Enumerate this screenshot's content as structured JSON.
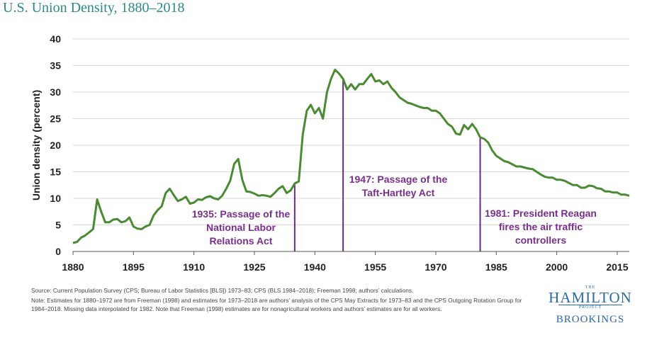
{
  "title": "U.S. Union Density, 1880–2018",
  "source_note": "Source: Current Population Survey (CPS; Bureau of Labor Statistics [BLS]) 1973–83; CPS (BLS 1984–2018); Freeman 1998; authors’ calculations.",
  "method_note": "Note: Estimates for 1880–1972 are from Freeman (1998) and estimates for 1973–2018 are authors’ analysis of the CPS May Extracts for 1973–83 and the CPS Outgoing Rotation Group for 1984–2018. Missing data interpolated for 1982. Note that Freeman (1998) estimates are for nonagricultural workers and authors’ estimates are for all workers.",
  "logo": {
    "the": "THE",
    "hamilton": "HAMILTON",
    "project": "PROJECT",
    "brookings": "BROOKINGS"
  },
  "colors": {
    "line": "#4a8a32",
    "marker": "#6b2a8a",
    "annotation": "#7a2e8e",
    "title": "#2a8a8a",
    "grid": "#d9d9d9"
  },
  "chart_data": {
    "type": "line",
    "title": "U.S. Union Density, 1880–2018",
    "xlabel": "",
    "ylabel": "Union density (percent)",
    "xlim": [
      1880,
      2018
    ],
    "ylim": [
      0,
      40
    ],
    "x_ticks": [
      1880,
      1895,
      1910,
      1925,
      1940,
      1955,
      1970,
      1985,
      2000,
      2015
    ],
    "y_ticks": [
      0,
      5,
      10,
      15,
      20,
      25,
      30,
      35,
      40
    ],
    "grid": "horizontal",
    "series": [
      {
        "x": [
          1880,
          1881,
          1882,
          1883,
          1884,
          1885,
          1886,
          1887,
          1888,
          1889,
          1890,
          1891,
          1892,
          1893,
          1894,
          1895,
          1896,
          1897,
          1898,
          1899,
          1900,
          1901,
          1902,
          1903,
          1904,
          1905,
          1906,
          1907,
          1908,
          1909,
          1910,
          1911,
          1912,
          1913,
          1914,
          1915,
          1916,
          1917,
          1918,
          1919,
          1920,
          1921,
          1922,
          1923,
          1924,
          1925,
          1926,
          1927,
          1928,
          1929,
          1930,
          1931,
          1932,
          1933,
          1934,
          1935,
          1936,
          1937,
          1938,
          1939,
          1940,
          1941,
          1942,
          1943,
          1944,
          1945,
          1946,
          1947,
          1948,
          1949,
          1950,
          1951,
          1952,
          1953,
          1954,
          1955,
          1956,
          1957,
          1958,
          1959,
          1960,
          1961,
          1962,
          1963,
          1964,
          1965,
          1966,
          1967,
          1968,
          1969,
          1970,
          1971,
          1972,
          1973,
          1974,
          1975,
          1976,
          1977,
          1978,
          1979,
          1980,
          1981,
          1982,
          1983,
          1984,
          1985,
          1986,
          1987,
          1988,
          1989,
          1990,
          1991,
          1992,
          1993,
          1994,
          1995,
          1996,
          1997,
          1998,
          1999,
          2000,
          2001,
          2002,
          2003,
          2004,
          2005,
          2006,
          2007,
          2008,
          2009,
          2010,
          2011,
          2012,
          2013,
          2014,
          2015,
          2016,
          2017,
          2018
        ],
        "values": [
          1.6,
          1.8,
          2.6,
          3.0,
          3.6,
          4.2,
          9.8,
          7.5,
          5.5,
          5.5,
          6.0,
          6.1,
          5.5,
          5.7,
          6.4,
          4.7,
          4.3,
          4.2,
          4.7,
          5.0,
          6.8,
          7.8,
          8.5,
          11.0,
          11.8,
          10.6,
          9.5,
          9.8,
          10.3,
          9.0,
          9.2,
          9.8,
          9.7,
          10.2,
          10.4,
          10.0,
          9.8,
          10.5,
          11.8,
          13.3,
          16.5,
          17.4,
          13.5,
          11.3,
          11.2,
          10.9,
          10.5,
          10.6,
          10.5,
          10.3,
          11.0,
          11.8,
          12.3,
          11.0,
          11.5,
          12.8,
          13.2,
          22.0,
          26.5,
          27.6,
          26.0,
          27.0,
          25.0,
          30.0,
          32.5,
          34.2,
          33.5,
          32.5,
          30.5,
          31.5,
          30.5,
          31.5,
          31.5,
          32.5,
          33.4,
          32.0,
          32.2,
          31.5,
          32.0,
          30.8,
          30.0,
          29.0,
          28.5,
          28.0,
          27.8,
          27.5,
          27.2,
          27.0,
          27.0,
          26.5,
          26.5,
          26.0,
          25.0,
          24.0,
          23.5,
          22.2,
          22.0,
          23.8,
          23.0,
          24.0,
          23.0,
          21.5,
          21.2,
          20.5,
          19.0,
          18.0,
          17.5,
          17.0,
          16.8,
          16.4,
          16.0,
          16.0,
          15.8,
          15.6,
          15.5,
          15.0,
          14.5,
          14.1,
          13.9,
          13.9,
          13.5,
          13.5,
          13.3,
          12.9,
          12.5,
          12.5,
          12.0,
          12.0,
          12.4,
          12.3,
          11.9,
          11.8,
          11.3,
          11.3,
          11.1,
          11.1,
          10.7,
          10.7,
          10.5
        ]
      }
    ],
    "annotations": [
      {
        "x": 1935,
        "lines": [
          "1935: Passage of the",
          "National Labor",
          "Relations Act"
        ]
      },
      {
        "x": 1947,
        "lines": [
          "1947: Passage of the",
          "Taft-Hartley Act"
        ]
      },
      {
        "x": 1981,
        "lines": [
          "1981: President Reagan",
          "fires the air traffic",
          "controllers"
        ]
      }
    ]
  }
}
